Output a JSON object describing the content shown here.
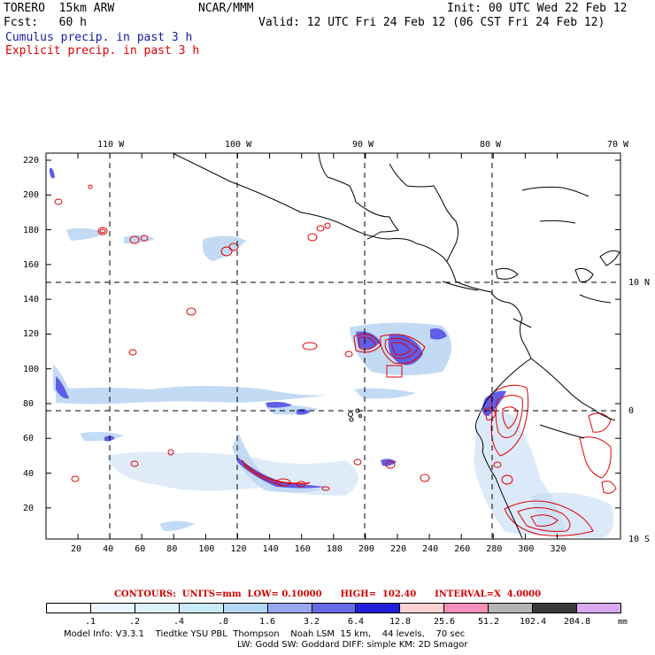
{
  "header": {
    "model_name": "TORERO  15km ARW",
    "org": "NCAR/MMM",
    "init": "Init: 00 UTC Wed 22 Feb 12",
    "fcst": "Fcst:   60 h",
    "valid": "Valid: 12 UTC Fri 24 Feb 12 (06 CST Fri 24 Feb 12)",
    "line_cumulus": "Cumulus precip. in past 3 h",
    "line_explicit": "Explicit precip. in past 3 h"
  },
  "map": {
    "lon_labels": [
      "110 W",
      "100 W",
      "90 W",
      "80 W",
      "70 W"
    ],
    "lat_labels": [
      "10 N",
      "0",
      "10 S"
    ],
    "y_ticks": [
      "220",
      "200",
      "180",
      "160",
      "140",
      "120",
      "100",
      "80",
      "60",
      "40",
      "20"
    ],
    "x_ticks": [
      "20",
      "40",
      "60",
      "80",
      "100",
      "120",
      "140",
      "160",
      "180",
      "200",
      "220",
      "240",
      "260",
      "280",
      "300",
      "320"
    ]
  },
  "legend": {
    "contours_label": "CONTOURS:  UNITS=mm  LOW= 0.10000      HIGH=  102.40      INTERVAL=X  4.0000",
    "labels": [
      ".1",
      ".2",
      ".4",
      ".8",
      "1.6",
      "3.2",
      "6.4",
      "12.8",
      "25.6",
      "51.2",
      "102.4",
      "204.8"
    ],
    "units": "mm",
    "colors": [
      "#ffffff",
      "#e8f4ff",
      "#dff1fb",
      "#c9eaf7",
      "#b4d7f4",
      "#9aa9ef",
      "#6a6ae6",
      "#2020d8",
      "#f9d3d3",
      "#f38fb9",
      "#b5b5b5",
      "#3a3a3a",
      "#d8a8f0"
    ]
  },
  "footer": {
    "line1": "Model Info: V3.3.1    Tiedtke YSU PBL  Thompson    Noah LSM  15 km,    44 levels,    70 sec",
    "line2": "LW: Godd SW: Goddard DIFF: simple KM: 2D Smagor"
  }
}
